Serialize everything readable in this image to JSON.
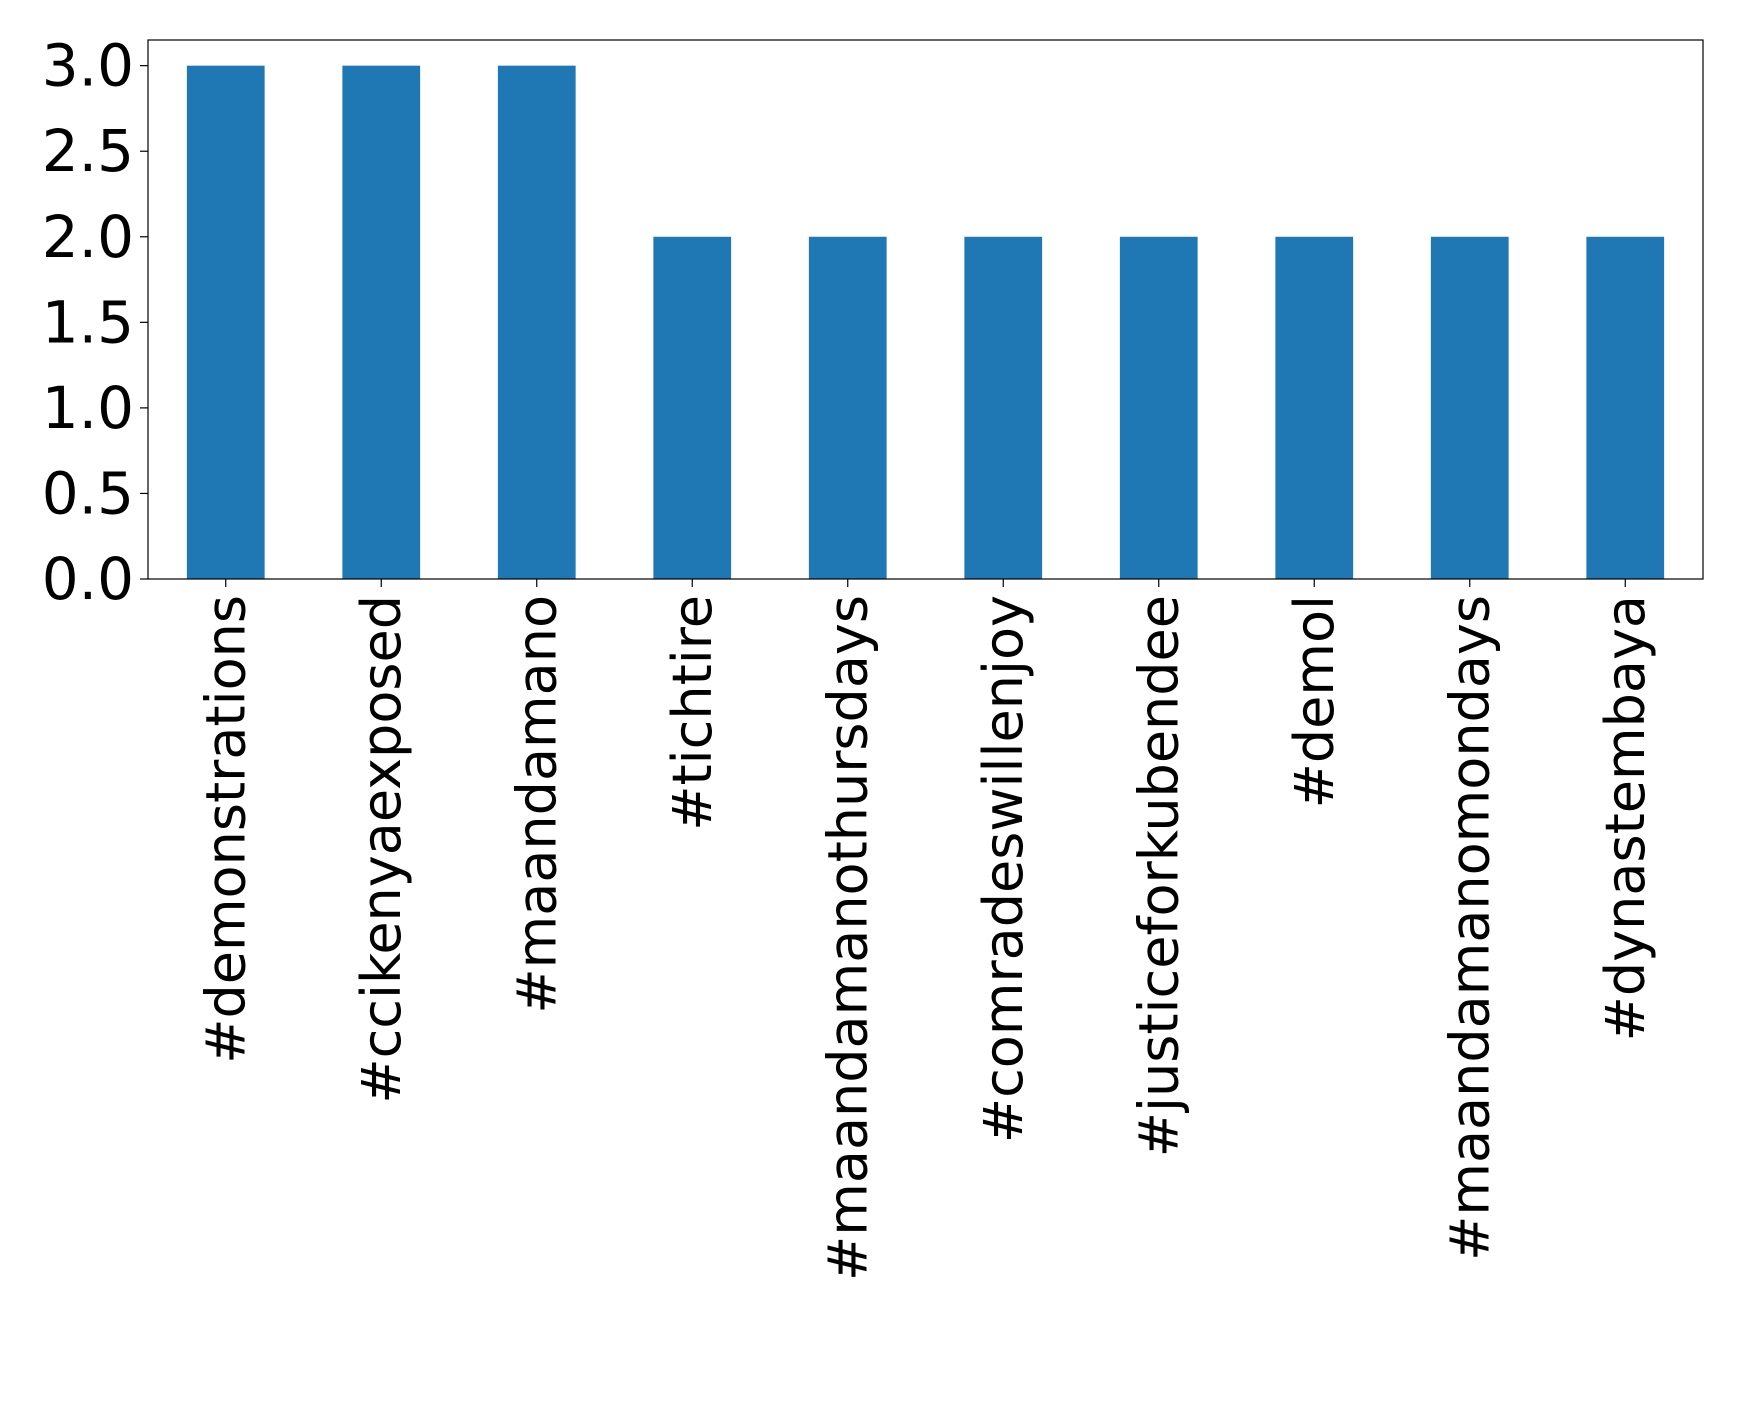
{
  "chart_data": {
    "type": "bar",
    "title": "",
    "xlabel": "",
    "ylabel": "",
    "categories": [
      "#demonstrations",
      "#ccikenyaexposed",
      "#maandamano",
      "#tichtire",
      "#maandamanothursdays",
      "#comradeswillenjoy",
      "#justiceforkubendee",
      "#demol",
      "#maandamanomondays",
      "#dynastembaya"
    ],
    "values": [
      3,
      3,
      3,
      2,
      2,
      2,
      2,
      2,
      2,
      2
    ],
    "ylim": [
      0,
      3.15
    ],
    "yticks": [
      0.0,
      0.5,
      1.0,
      1.5,
      2.0,
      2.5,
      3.0
    ],
    "ytick_labels": [
      "0.0",
      "0.5",
      "1.0",
      "1.5",
      "2.0",
      "2.5",
      "3.0"
    ],
    "bar_color": "#1f77b4",
    "grid": false,
    "legend": "none"
  }
}
